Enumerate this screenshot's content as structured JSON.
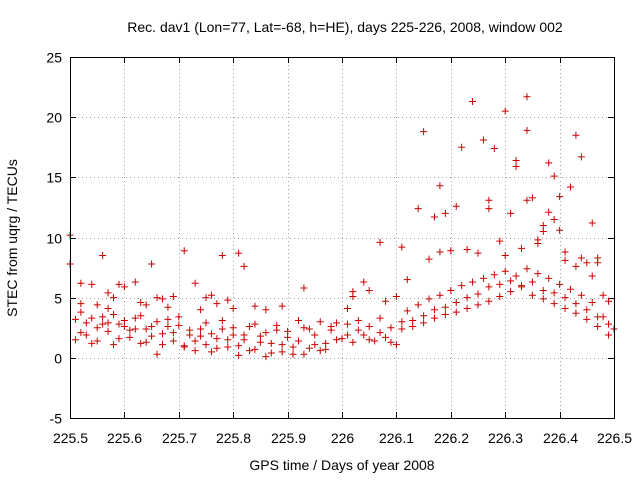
{
  "chart_data": {
    "type": "scatter",
    "title": "Rec. dav1 (Lon=77, Lat=-68, h=HE), days 225-226, 2008, window 002",
    "xlabel": "GPS time / Days of year 2008",
    "ylabel": "STEC from uqrg / TECUs",
    "xlim": [
      225.5,
      226.5
    ],
    "ylim": [
      -5,
      25
    ],
    "xticks": [
      "225.5",
      "225.6",
      "225.7",
      "225.8",
      "225.9",
      "226",
      "226.1",
      "226.2",
      "226.3",
      "226.4",
      "226.5"
    ],
    "yticks": [
      "-5",
      "0",
      "5",
      "10",
      "15",
      "20",
      "25"
    ],
    "grid": true,
    "marker": "+",
    "color": "#cc0000",
    "series": [
      {
        "name": "STEC",
        "points": [
          [
            225.5,
            10.2
          ],
          [
            225.5,
            7.8
          ],
          [
            225.52,
            6.2
          ],
          [
            225.54,
            6.1
          ],
          [
            225.56,
            8.5
          ],
          [
            225.57,
            5.4
          ],
          [
            225.58,
            5.0
          ],
          [
            225.59,
            6.1
          ],
          [
            225.6,
            5.9
          ],
          [
            225.62,
            6.3
          ],
          [
            225.64,
            4.4
          ],
          [
            225.65,
            7.8
          ],
          [
            225.66,
            5.0
          ],
          [
            225.67,
            4.9
          ],
          [
            225.69,
            5.1
          ],
          [
            225.71,
            8.9
          ],
          [
            225.73,
            6.2
          ],
          [
            225.75,
            5.0
          ],
          [
            225.76,
            5.2
          ],
          [
            225.78,
            8.5
          ],
          [
            225.79,
            4.8
          ],
          [
            225.8,
            4.1
          ],
          [
            225.81,
            8.7
          ],
          [
            225.82,
            7.6
          ],
          [
            225.84,
            4.3
          ],
          [
            225.86,
            4.0
          ],
          [
            225.89,
            4.3
          ],
          [
            225.93,
            5.8
          ],
          [
            225.52,
            4.5
          ],
          [
            225.55,
            4.4
          ],
          [
            225.57,
            4.1
          ],
          [
            225.63,
            4.6
          ],
          [
            225.68,
            4.2
          ],
          [
            225.74,
            4.0
          ],
          [
            225.77,
            4.5
          ],
          [
            226.01,
            4.1
          ],
          [
            226.02,
            5.5
          ],
          [
            226.02,
            5.1
          ],
          [
            226.04,
            6.3
          ],
          [
            226.05,
            5.6
          ],
          [
            226.07,
            9.6
          ],
          [
            226.08,
            4.7
          ],
          [
            226.1,
            5.1
          ],
          [
            226.11,
            9.2
          ],
          [
            226.12,
            6.5
          ],
          [
            226.14,
            12.4
          ],
          [
            226.15,
            18.8
          ],
          [
            226.16,
            8.2
          ],
          [
            226.17,
            11.7
          ],
          [
            226.18,
            14.3
          ],
          [
            226.18,
            8.8
          ],
          [
            226.19,
            12.0
          ],
          [
            226.2,
            8.9
          ],
          [
            226.21,
            12.6
          ],
          [
            226.22,
            17.5
          ],
          [
            226.23,
            9.0
          ],
          [
            226.24,
            21.3
          ],
          [
            226.25,
            8.7
          ],
          [
            226.26,
            18.1
          ],
          [
            226.27,
            13.1
          ],
          [
            226.27,
            12.4
          ],
          [
            226.28,
            17.4
          ],
          [
            226.29,
            9.7
          ],
          [
            226.3,
            20.5
          ],
          [
            226.3,
            8.5
          ],
          [
            226.31,
            12.0
          ],
          [
            226.32,
            16.4
          ],
          [
            226.32,
            15.9
          ],
          [
            226.33,
            9.1
          ],
          [
            226.34,
            21.7
          ],
          [
            226.34,
            18.9
          ],
          [
            226.34,
            13.1
          ],
          [
            226.35,
            13.3
          ],
          [
            226.36,
            9.8
          ],
          [
            226.36,
            9.5
          ],
          [
            226.37,
            11.0
          ],
          [
            226.37,
            10.5
          ],
          [
            226.38,
            16.2
          ],
          [
            226.38,
            12.1
          ],
          [
            226.39,
            15.1
          ],
          [
            226.39,
            11.5
          ],
          [
            226.4,
            13.4
          ],
          [
            226.4,
            10.6
          ],
          [
            226.41,
            8.8
          ],
          [
            226.42,
            14.2
          ],
          [
            226.43,
            18.5
          ],
          [
            226.44,
            16.7
          ],
          [
            226.44,
            8.3
          ],
          [
            226.46,
            11.2
          ],
          [
            226.47,
            8.3
          ],
          [
            226.47,
            7.9
          ],
          [
            226.48,
            5.2
          ],
          [
            226.49,
            4.7
          ],
          [
            226.41,
            8.1
          ],
          [
            226.43,
            7.6
          ],
          [
            226.45,
            7.9
          ],
          [
            226.46,
            6.8
          ],
          [
            225.51,
            3.2
          ],
          [
            225.52,
            2.1
          ],
          [
            225.53,
            2.9
          ],
          [
            225.54,
            1.2
          ],
          [
            225.55,
            2.5
          ],
          [
            225.56,
            3.4
          ],
          [
            225.57,
            2.2
          ],
          [
            225.58,
            1.1
          ],
          [
            225.59,
            2.8
          ],
          [
            225.6,
            3.1
          ],
          [
            225.61,
            1.7
          ],
          [
            225.62,
            2.4
          ],
          [
            225.63,
            3.5
          ],
          [
            225.64,
            1.3
          ],
          [
            225.65,
            2.6
          ],
          [
            225.66,
            0.3
          ],
          [
            225.67,
            2.0
          ],
          [
            225.68,
            3.2
          ],
          [
            225.69,
            1.4
          ],
          [
            225.7,
            2.7
          ],
          [
            225.71,
            1.0
          ],
          [
            225.72,
            2.3
          ],
          [
            225.73,
            0.6
          ],
          [
            225.74,
            1.8
          ],
          [
            225.75,
            2.9
          ],
          [
            225.76,
            0.5
          ],
          [
            225.77,
            1.6
          ],
          [
            225.78,
            2.4
          ],
          [
            225.79,
            0.9
          ],
          [
            225.8,
            1.9
          ],
          [
            225.81,
            0.2
          ],
          [
            225.82,
            1.5
          ],
          [
            225.83,
            2.6
          ],
          [
            225.84,
            0.7
          ],
          [
            225.85,
            1.8
          ],
          [
            225.86,
            0.1
          ],
          [
            225.87,
            1.2
          ],
          [
            225.88,
            2.3
          ],
          [
            225.89,
            0.5
          ],
          [
            225.9,
            1.7
          ],
          [
            225.91,
            0.3
          ],
          [
            225.92,
            1.4
          ],
          [
            225.93,
            2.5
          ],
          [
            225.94,
            0.8
          ],
          [
            225.95,
            1.9
          ],
          [
            225.96,
            0.6
          ],
          [
            225.97,
            1.2
          ],
          [
            225.98,
            2.6
          ],
          [
            225.99,
            2.9
          ],
          [
            226.0,
            1.6
          ],
          [
            226.01,
            2.8
          ],
          [
            226.02,
            1.3
          ],
          [
            226.03,
            3.1
          ],
          [
            226.04,
            1.9
          ],
          [
            226.05,
            2.6
          ],
          [
            226.06,
            1.4
          ],
          [
            226.07,
            3.3
          ],
          [
            226.08,
            1.7
          ],
          [
            226.09,
            2.5
          ],
          [
            226.1,
            1.1
          ],
          [
            226.11,
            3.0
          ],
          [
            226.12,
            3.9
          ],
          [
            226.13,
            2.6
          ],
          [
            226.14,
            4.4
          ],
          [
            226.15,
            2.9
          ],
          [
            226.16,
            4.9
          ],
          [
            226.17,
            3.3
          ],
          [
            226.18,
            5.2
          ],
          [
            226.19,
            3.6
          ],
          [
            226.2,
            5.6
          ],
          [
            226.21,
            3.8
          ],
          [
            226.22,
            6.0
          ],
          [
            226.23,
            4.1
          ],
          [
            226.24,
            6.3
          ],
          [
            226.25,
            4.4
          ],
          [
            226.26,
            6.6
          ],
          [
            226.27,
            4.7
          ],
          [
            226.28,
            6.9
          ],
          [
            226.29,
            5.1
          ],
          [
            226.3,
            7.2
          ],
          [
            226.31,
            5.5
          ],
          [
            226.32,
            6.8
          ],
          [
            226.33,
            5.9
          ],
          [
            226.34,
            7.4
          ],
          [
            226.35,
            5.2
          ],
          [
            226.36,
            7.0
          ],
          [
            226.37,
            4.9
          ],
          [
            226.38,
            6.6
          ],
          [
            226.39,
            4.5
          ],
          [
            226.4,
            6.1
          ],
          [
            226.41,
            4.1
          ],
          [
            226.42,
            5.7
          ],
          [
            226.43,
            3.7
          ],
          [
            226.44,
            5.2
          ],
          [
            226.45,
            3.2
          ],
          [
            226.46,
            4.6
          ],
          [
            226.47,
            2.6
          ],
          [
            226.48,
            3.4
          ],
          [
            226.49,
            1.9
          ],
          [
            226.5,
            2.4
          ],
          [
            225.51,
            1.5
          ],
          [
            225.53,
            1.9
          ],
          [
            225.55,
            1.4
          ],
          [
            225.57,
            2.9
          ],
          [
            225.59,
            1.6
          ],
          [
            225.61,
            2.3
          ],
          [
            225.63,
            1.2
          ],
          [
            225.65,
            1.8
          ],
          [
            225.67,
            1.1
          ],
          [
            225.69,
            2.1
          ],
          [
            225.71,
            0.9
          ],
          [
            225.73,
            1.4
          ],
          [
            225.75,
            1.1
          ],
          [
            225.77,
            0.8
          ],
          [
            225.79,
            1.5
          ],
          [
            225.81,
            1.0
          ],
          [
            225.83,
            0.6
          ],
          [
            225.85,
            1.3
          ],
          [
            225.87,
            0.4
          ],
          [
            225.89,
            1.1
          ],
          [
            225.91,
            0.9
          ],
          [
            225.93,
            0.3
          ],
          [
            225.95,
            1.1
          ],
          [
            225.97,
            0.7
          ],
          [
            225.99,
            1.5
          ],
          [
            226.01,
            1.9
          ],
          [
            226.03,
            2.3
          ],
          [
            226.05,
            1.5
          ],
          [
            226.07,
            2.1
          ],
          [
            226.09,
            1.3
          ],
          [
            226.11,
            2.4
          ],
          [
            226.13,
            3.1
          ],
          [
            226.15,
            3.5
          ],
          [
            226.17,
            4.0
          ],
          [
            226.19,
            4.2
          ],
          [
            226.21,
            4.6
          ],
          [
            226.23,
            5.0
          ],
          [
            226.25,
            5.3
          ],
          [
            226.27,
            5.9
          ],
          [
            226.29,
            6.1
          ],
          [
            226.31,
            6.4
          ],
          [
            226.33,
            6.0
          ],
          [
            226.35,
            6.3
          ],
          [
            226.37,
            5.6
          ],
          [
            226.39,
            5.4
          ],
          [
            226.41,
            5.0
          ],
          [
            226.43,
            4.5
          ],
          [
            226.45,
            4.0
          ],
          [
            226.47,
            3.4
          ],
          [
            226.49,
            2.8
          ],
          [
            225.52,
            3.8
          ],
          [
            225.54,
            3.3
          ],
          [
            225.56,
            2.8
          ],
          [
            225.58,
            3.6
          ],
          [
            225.6,
            2.6
          ],
          [
            225.62,
            3.3
          ],
          [
            225.64,
            2.4
          ],
          [
            225.66,
            3.0
          ],
          [
            225.68,
            2.6
          ],
          [
            225.7,
            3.4
          ],
          [
            225.72,
            1.9
          ],
          [
            225.74,
            2.4
          ],
          [
            225.76,
            2.0
          ],
          [
            225.78,
            3.1
          ],
          [
            225.8,
            2.5
          ],
          [
            225.82,
            1.9
          ],
          [
            225.84,
            2.8
          ],
          [
            225.86,
            2.1
          ],
          [
            225.88,
            2.7
          ],
          [
            225.9,
            2.2
          ],
          [
            225.92,
            3.1
          ],
          [
            225.94,
            2.4
          ],
          [
            225.96,
            3.0
          ],
          [
            225.98,
            2.3
          ]
        ]
      }
    ]
  }
}
